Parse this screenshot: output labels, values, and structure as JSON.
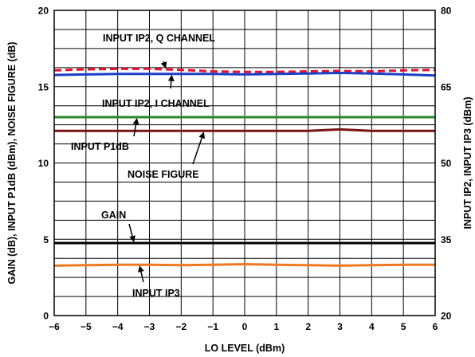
{
  "chart_data": {
    "type": "line",
    "title": "",
    "xlabel": "LO LEVEL (dBm)",
    "ylabel_left": "GAIN (dB), INPUT P1dB (dBm), NOISE FIGURE (dB)",
    "ylabel_right": "INPUT IP2, INPUT IP3 (dBm)",
    "xlim": [
      -6,
      6
    ],
    "ylim_left": [
      0,
      20
    ],
    "ylim_right": [
      20,
      80
    ],
    "grid": true,
    "x_ticks": [
      -6,
      -5,
      -4,
      -3,
      -2,
      -1,
      0,
      1,
      2,
      3,
      4,
      5,
      6
    ],
    "x_tick_labels": [
      "−6",
      "−5",
      "−4",
      "−3",
      "−2",
      "−1",
      "0",
      "1",
      "2",
      "3",
      "4",
      "5",
      "6"
    ],
    "y_left_tick_labels": [
      {
        "value": 0,
        "label": "0"
      },
      {
        "value": 5,
        "label": "5"
      },
      {
        "value": 10,
        "label": "10"
      },
      {
        "value": 15,
        "label": "15"
      },
      {
        "value": 20,
        "label": "20"
      }
    ],
    "y_right_tick_labels": [
      {
        "value": 20,
        "label": "20"
      },
      {
        "value": 35,
        "label": "35"
      },
      {
        "value": 50,
        "label": "50"
      },
      {
        "value": 65,
        "label": "65"
      },
      {
        "value": 80,
        "label": "80"
      }
    ],
    "x": [
      -6,
      -5,
      -4,
      -3,
      -2,
      -1,
      0,
      1,
      2,
      3,
      4,
      5,
      6
    ],
    "series": [
      {
        "key": "ip2q",
        "name": "INPUT IP2, Q CHANNEL",
        "axis": "right",
        "color": "#e8102e",
        "dash": true,
        "values": [
          68.2,
          68.4,
          68.5,
          68.5,
          68.3,
          68.0,
          67.9,
          67.9,
          68.0,
          68.1,
          68.0,
          68.2,
          68.3
        ]
      },
      {
        "key": "ip2i",
        "name": "INPUT IP2, I CHANNEL",
        "axis": "right",
        "color": "#1a3fc8",
        "dash": false,
        "values": [
          67.3,
          67.4,
          67.5,
          67.5,
          67.5,
          67.5,
          67.4,
          67.5,
          67.6,
          67.7,
          67.6,
          67.4,
          67.2
        ]
      },
      {
        "key": "p1db",
        "name": "INPUT P1dB",
        "axis": "left",
        "color": "#2a8a2a",
        "dash": false,
        "values": [
          13.0,
          13.0,
          13.0,
          13.0,
          13.0,
          13.0,
          13.0,
          13.0,
          13.0,
          13.0,
          13.0,
          13.0,
          13.0
        ]
      },
      {
        "key": "nf",
        "name": "NOISE FIGURE",
        "axis": "left",
        "color": "#7a1414",
        "dash": false,
        "values": [
          12.1,
          12.1,
          12.1,
          12.1,
          12.1,
          12.1,
          12.1,
          12.1,
          12.1,
          12.2,
          12.1,
          12.1,
          12.1
        ]
      },
      {
        "key": "gain",
        "name": "GAIN",
        "axis": "left",
        "color": "#000000",
        "dash": false,
        "values": [
          4.75,
          4.75,
          4.75,
          4.75,
          4.75,
          4.75,
          4.75,
          4.75,
          4.75,
          4.75,
          4.75,
          4.75,
          4.75
        ]
      },
      {
        "key": "ip3",
        "name": "INPUT IP3",
        "axis": "right",
        "color": "#f07820",
        "dash": false,
        "values": [
          29.8,
          29.9,
          30.0,
          30.0,
          29.9,
          30.0,
          30.1,
          30.0,
          29.9,
          29.8,
          29.9,
          30.0,
          30.0
        ]
      }
    ],
    "annotations": [
      {
        "key": "ip2q",
        "text": "INPUT IP2, Q CHANNEL",
        "series": "ip2q",
        "at_x": -2.5
      },
      {
        "key": "ip2i",
        "text": "INPUT IP2, I CHANNEL",
        "series": "ip2i",
        "at_x": -2.3
      },
      {
        "key": "p1db",
        "text": "INPUT P1dB",
        "series": "p1db",
        "at_x": -3.4
      },
      {
        "key": "nf",
        "text": "NOISE FIGURE",
        "series": "nf",
        "at_x": -1.3
      },
      {
        "key": "gain",
        "text": "GAIN",
        "series": "gain",
        "at_x": -3.5
      },
      {
        "key": "ip3",
        "text": "INPUT IP3",
        "series": "ip3",
        "at_x": -3.3
      }
    ]
  }
}
